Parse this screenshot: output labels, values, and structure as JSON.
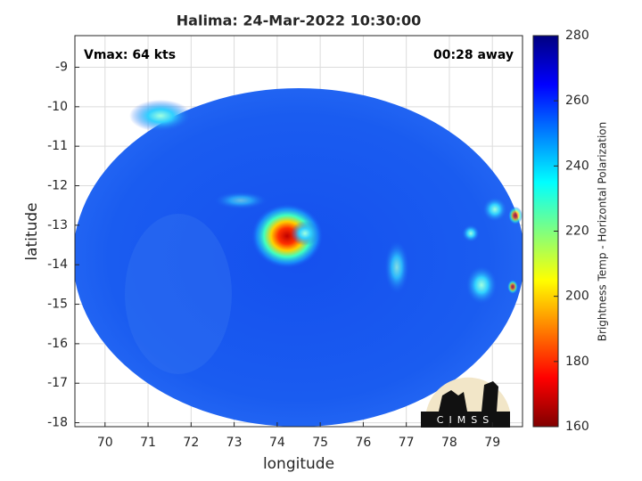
{
  "chart_data": {
    "type": "map",
    "title": "Halima: 24-Mar-2022 10:30:00",
    "xlabel": "longitude",
    "ylabel": "latitude",
    "annotations": [
      "Vmax: 64 kts",
      "00:28 away"
    ],
    "xlim": [
      69.3,
      79.7
    ],
    "xticks": [
      70,
      71,
      72,
      73,
      74,
      75,
      76,
      77,
      78,
      79
    ],
    "ylim": [
      -18.1,
      -8.2
    ],
    "yticks": [
      -18,
      -17,
      -16,
      -15,
      -14,
      -13,
      -12,
      -11,
      -10,
      -9
    ],
    "grid": true,
    "colorbar": {
      "label": "Brightness Temp - Horizontal Polarization",
      "colormap": "jet",
      "lim": [
        160,
        280
      ],
      "ticks": [
        160,
        180,
        200,
        220,
        240,
        260,
        280
      ]
    },
    "logo_text": "CIMSS"
  }
}
